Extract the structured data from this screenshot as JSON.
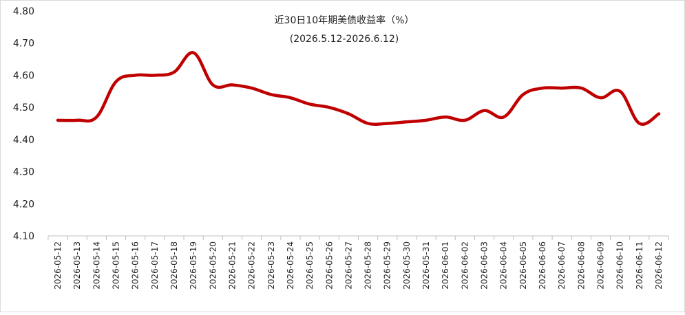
{
  "chart_data": {
    "type": "line",
    "title": "近30日10年期美债收益率（%）",
    "subtitle": "(2026.5.12-2026.6.12)",
    "xlabel": "",
    "ylabel": "",
    "ylim": [
      4.1,
      4.8
    ],
    "yticks": [
      "4.10",
      "4.20",
      "4.30",
      "4.40",
      "4.50",
      "4.60",
      "4.70",
      "4.80"
    ],
    "grid": false,
    "line_color": "#C00000",
    "x": [
      "2026-05-12",
      "2026-05-13",
      "2026-05-14",
      "2026-05-15",
      "2026-05-16",
      "2026-05-17",
      "2026-05-18",
      "2026-05-19",
      "2026-05-20",
      "2026-05-21",
      "2026-05-22",
      "2026-05-23",
      "2026-05-24",
      "2026-05-25",
      "2026-05-26",
      "2026-05-27",
      "2026-05-28",
      "2026-05-29",
      "2026-05-30",
      "2026-05-31",
      "2026-06-01",
      "2026-06-02",
      "2026-06-03",
      "2026-06-04",
      "2026-06-05",
      "2026-06-06",
      "2026-06-07",
      "2026-06-08",
      "2026-06-09",
      "2026-06-10",
      "2026-06-11",
      "2026-06-12"
    ],
    "series": [
      {
        "values": [
          4.46,
          4.46,
          4.47,
          4.58,
          4.6,
          4.6,
          4.61,
          4.67,
          4.57,
          4.57,
          4.56,
          4.54,
          4.53,
          4.51,
          4.5,
          4.48,
          4.45,
          4.45,
          4.455,
          4.46,
          4.47,
          4.46,
          4.49,
          4.47,
          4.54,
          4.56,
          4.56,
          4.56,
          4.53,
          4.55,
          4.45,
          4.48
        ]
      }
    ]
  }
}
